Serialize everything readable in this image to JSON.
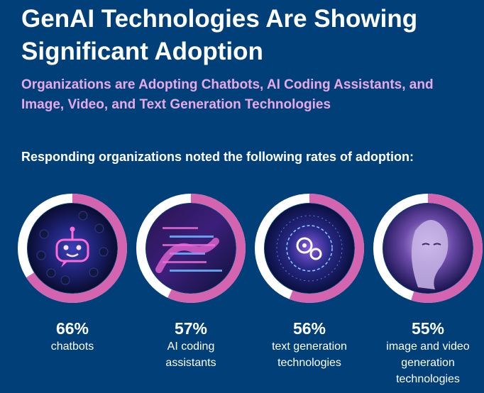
{
  "header": {
    "title": "GenAI Technologies Are Showing Significant Adoption",
    "subtitle": "Organizations are Adopting Chatbots, AI Coding Assistants, and Image, Video, and Text Generation Technologies",
    "lead": "Responding organizations noted the following rates of adoption:"
  },
  "chart_data": {
    "type": "pie",
    "unit": "%",
    "categories": [
      "chatbots",
      "AI coding assistants",
      "text generation technologies",
      "image and video generation technologies"
    ],
    "values": [
      66,
      57,
      56,
      55
    ],
    "value_labels": [
      "66%",
      "57%",
      "56%",
      "55%"
    ],
    "label_lines": [
      [
        "chatbots"
      ],
      [
        "AI coding",
        "assistants"
      ],
      [
        "text generation",
        "technologies"
      ],
      [
        "image and video",
        "generation",
        "technologies"
      ]
    ],
    "icons": [
      "chatbot-icon",
      "coding-hands-icon",
      "gear-circuit-icon",
      "digital-face-icon"
    ],
    "colors": {
      "filled": "#d464b0",
      "remaining": "#ffffff",
      "background": "#003f78",
      "subtitle": "#e9a9e6"
    }
  }
}
